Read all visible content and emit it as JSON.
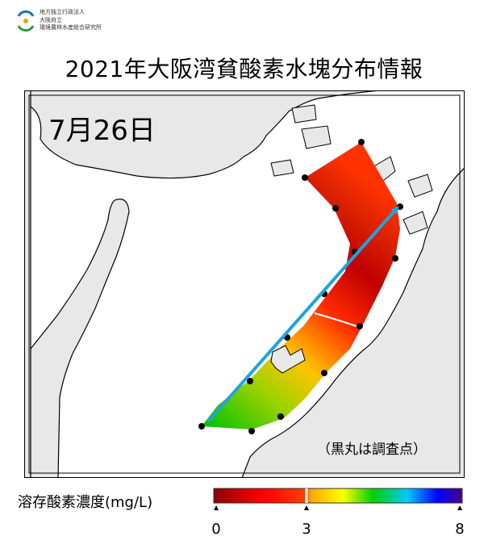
{
  "org": {
    "line1": "地方独立行政法人",
    "line2": "大阪府立",
    "line3": "環境農林水産総合研究所",
    "logo_icon": "org-logo-icon"
  },
  "title": "2021年大阪湾貧酸素水塊分布情報",
  "date_label": "7月26日",
  "note": "（黒丸は調査点）",
  "legend": {
    "label": "溶存酸素濃度(mg/L)",
    "ticks": [
      "0",
      "3",
      "8"
    ],
    "tick_values": [
      0,
      3,
      8
    ],
    "range": [
      0,
      8
    ],
    "colors": [
      "#8b0000",
      "#ff0000",
      "#ffa500",
      "#ffff00",
      "#00d000",
      "#00c8ff",
      "#0000ff",
      "#4b0082"
    ]
  },
  "map": {
    "land_color": "#e8e8e8",
    "water_color": "#ffffff",
    "arrow_color": "#1fa3e0",
    "survey_point_icon": "survey-point-dot"
  }
}
